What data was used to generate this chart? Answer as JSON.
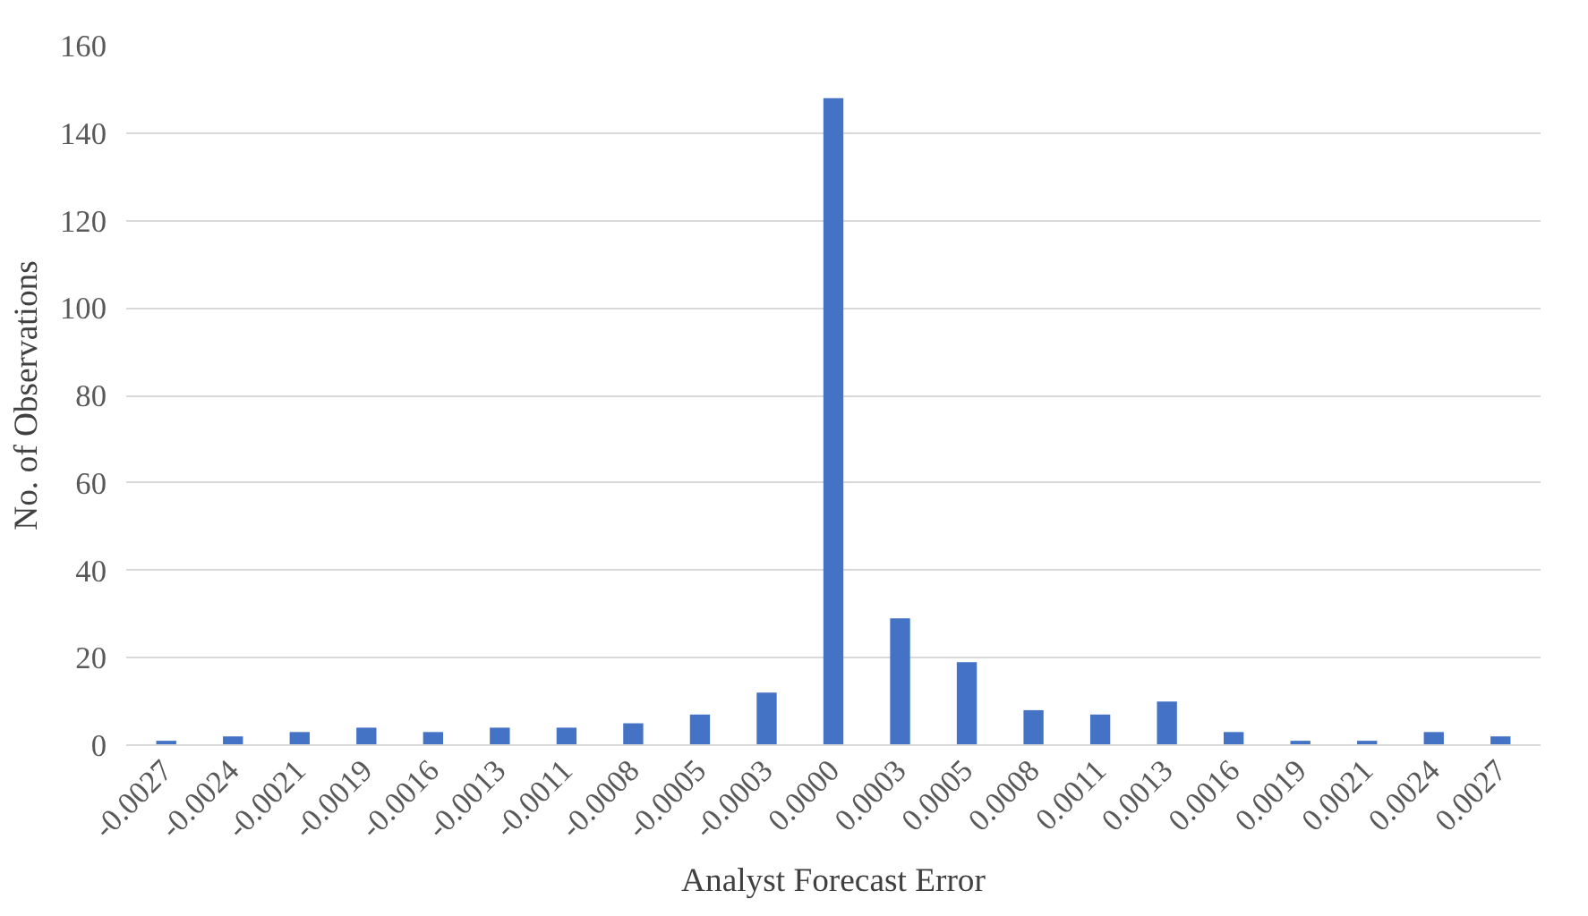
{
  "chart_data": {
    "type": "bar",
    "xlabel": "Analyst Forecast Error",
    "ylabel": "No. of Observations",
    "categories": [
      "-0.0027",
      "-0.0024",
      "-0.0021",
      "-0.0019",
      "-0.0016",
      "-0.0013",
      "-0.0011",
      "-0.0008",
      "-0.0005",
      "-0.0003",
      "0.0000",
      "0.0003",
      "0.0005",
      "0.0008",
      "0.0011",
      "0.0013",
      "0.0016",
      "0.0019",
      "0.0021",
      "0.0024",
      "0.0027"
    ],
    "values": [
      1,
      2,
      3,
      4,
      3,
      4,
      4,
      5,
      7,
      12,
      148,
      29,
      19,
      8,
      7,
      10,
      3,
      1,
      1,
      3,
      2
    ],
    "color": "#4472c4",
    "ylim": [
      0,
      160
    ],
    "yticks": [
      0,
      20,
      40,
      60,
      80,
      100,
      120,
      140,
      160
    ],
    "grid": "y"
  }
}
